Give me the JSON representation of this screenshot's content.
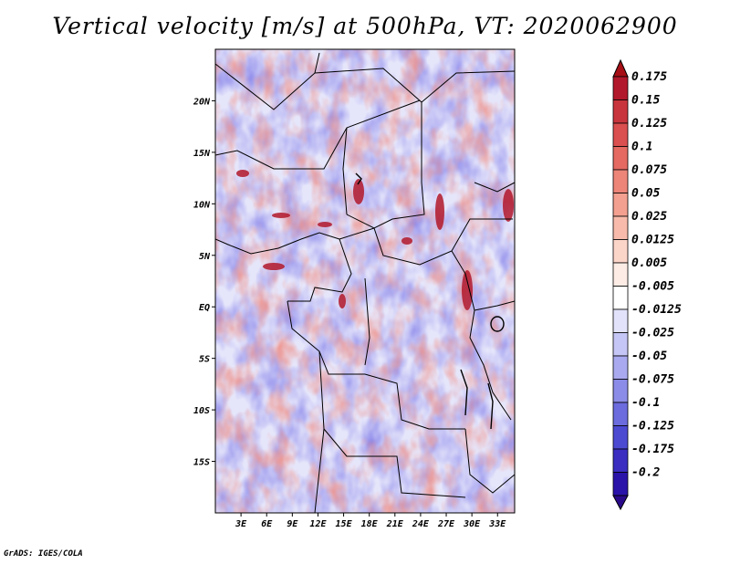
{
  "title": "Vertical velocity [m/s] at 500hPa, VT: 2020062900",
  "credit": "GrADS: IGES/COLA",
  "map": {
    "lon_range": [
      0,
      35
    ],
    "lat_range": [
      -20,
      25
    ],
    "lat_ticks": [
      {
        "value": 20,
        "label": "20N"
      },
      {
        "value": 15,
        "label": "15N"
      },
      {
        "value": 10,
        "label": "10N"
      },
      {
        "value": 5,
        "label": "5N"
      },
      {
        "value": 0,
        "label": "EQ"
      },
      {
        "value": -5,
        "label": "5S"
      },
      {
        "value": -10,
        "label": "10S"
      },
      {
        "value": -15,
        "label": "15S"
      }
    ],
    "lon_ticks": [
      {
        "value": 3,
        "label": "3E"
      },
      {
        "value": 6,
        "label": "6E"
      },
      {
        "value": 9,
        "label": "9E"
      },
      {
        "value": 12,
        "label": "12E"
      },
      {
        "value": 15,
        "label": "15E"
      },
      {
        "value": 18,
        "label": "18E"
      },
      {
        "value": 21,
        "label": "21E"
      },
      {
        "value": 24,
        "label": "24E"
      },
      {
        "value": 27,
        "label": "27E"
      },
      {
        "value": 30,
        "label": "30E"
      },
      {
        "value": 33,
        "label": "33E"
      }
    ]
  },
  "colorbar": {
    "top_color": "#a50f15",
    "bottom_color": "#2a0a8a",
    "levels": [
      {
        "label": "0.175",
        "color": "#b2182b"
      },
      {
        "label": "0.15",
        "color": "#c9353d"
      },
      {
        "label": "0.125",
        "color": "#da4f4f"
      },
      {
        "label": "0.1",
        "color": "#e46a62"
      },
      {
        "label": "0.075",
        "color": "#ed8579"
      },
      {
        "label": "0.05",
        "color": "#f3a090"
      },
      {
        "label": "0.025",
        "color": "#f8bbab"
      },
      {
        "label": "0.0125",
        "color": "#fcd5c9"
      },
      {
        "label": "0.005",
        "color": "#fdece6"
      },
      {
        "label": "-0.005",
        "color": "#ffffff"
      },
      {
        "label": "-0.0125",
        "color": "#e2e2fb"
      },
      {
        "label": "-0.025",
        "color": "#c6c6f6"
      },
      {
        "label": "-0.05",
        "color": "#a9a9f0"
      },
      {
        "label": "-0.075",
        "color": "#8b8be8"
      },
      {
        "label": "-0.1",
        "color": "#6c6cde"
      },
      {
        "label": "-0.125",
        "color": "#4d4ad2"
      },
      {
        "label": "-0.175",
        "color": "#3a2dc0"
      },
      {
        "label": "-0.2",
        "color": "#2a13a8"
      }
    ]
  }
}
